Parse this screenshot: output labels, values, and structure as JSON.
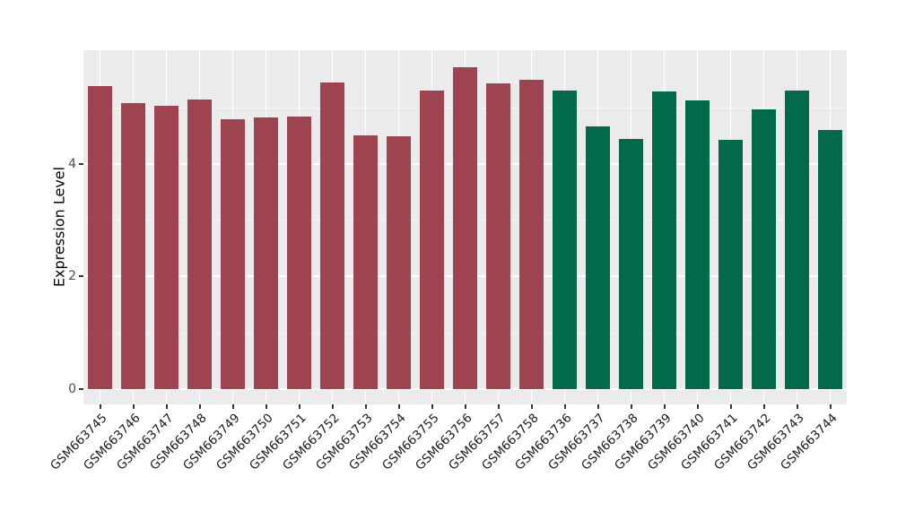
{
  "chart_data": {
    "type": "bar",
    "title": "",
    "xlabel": "",
    "ylabel": "Expression Level",
    "ylim": [
      0,
      6.02
    ],
    "yticks": [
      0,
      2,
      4
    ],
    "ytick_labels": [
      "0",
      "2",
      "4"
    ],
    "yminor_ticks": [
      1,
      3,
      5
    ],
    "grid": true,
    "legend_position": "none",
    "panel_bg": "#EBEBEB",
    "grid_color": "#FFFFFF",
    "colors": {
      "group1": "#9E4451",
      "group2": "#02694A"
    },
    "categories": [
      "GSM663745",
      "GSM663746",
      "GSM663747",
      "GSM663748",
      "GSM663749",
      "GSM663750",
      "GSM663751",
      "GSM663752",
      "GSM663753",
      "GSM663754",
      "GSM663755",
      "GSM663756",
      "GSM663757",
      "GSM663758",
      "GSM663736",
      "GSM663737",
      "GSM663738",
      "GSM663739",
      "GSM663740",
      "GSM663741",
      "GSM663742",
      "GSM663743",
      "GSM663744"
    ],
    "values": [
      5.38,
      5.08,
      5.04,
      5.15,
      4.8,
      4.82,
      4.84,
      5.45,
      4.51,
      4.49,
      5.3,
      5.72,
      5.43,
      5.49,
      5.3,
      4.67,
      4.45,
      5.29,
      5.13,
      4.43,
      4.97,
      5.31,
      4.6
    ],
    "bar_groups": [
      "group1",
      "group1",
      "group1",
      "group1",
      "group1",
      "group1",
      "group1",
      "group1",
      "group1",
      "group1",
      "group1",
      "group1",
      "group1",
      "group1",
      "group2",
      "group2",
      "group2",
      "group2",
      "group2",
      "group2",
      "group2",
      "group2",
      "group2"
    ]
  }
}
